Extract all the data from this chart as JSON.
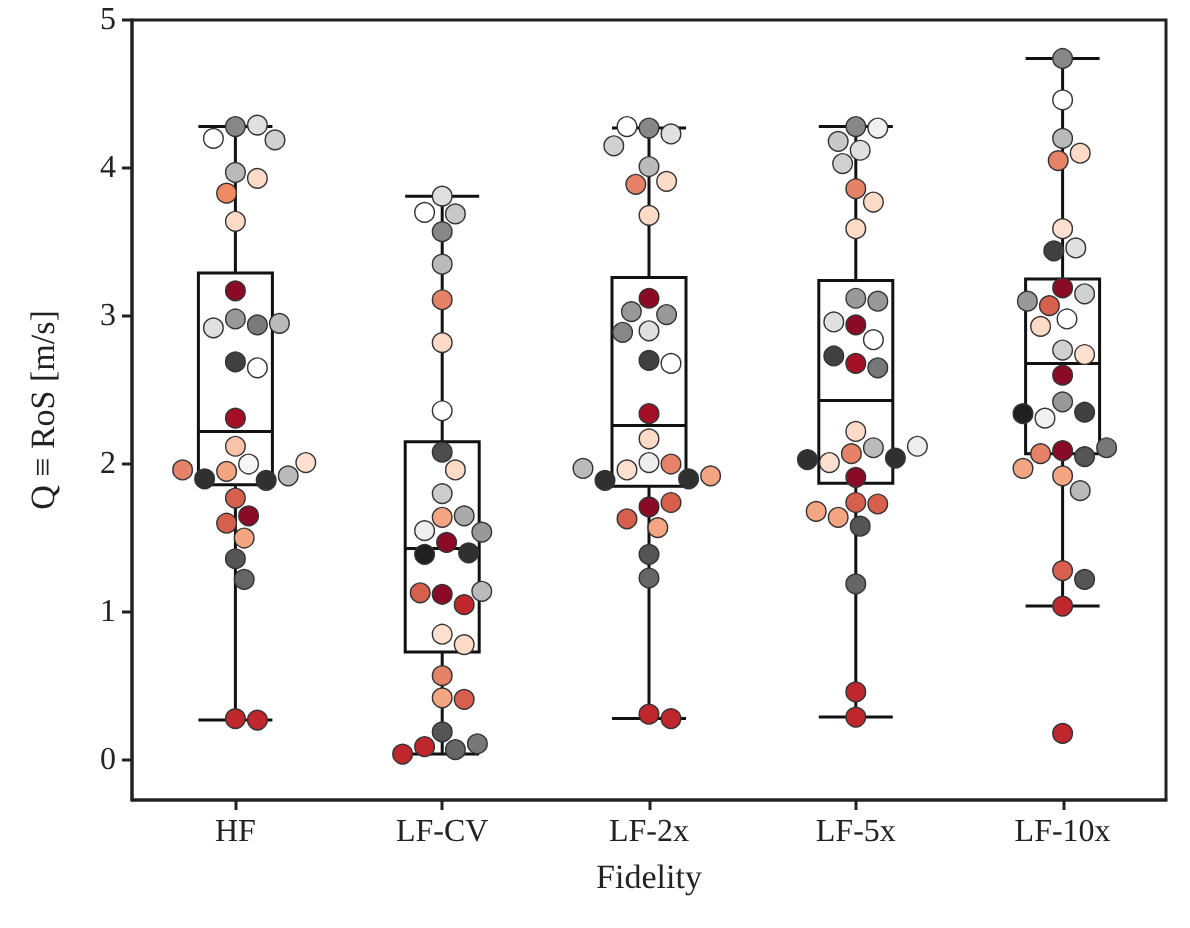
{
  "chart_data": {
    "type": "box",
    "xlabel": "Fidelity",
    "ylabel": "Q ≡ RoS [m/s]",
    "categories": [
      "HF",
      "LF-CV",
      "LF-2x",
      "LF-5x",
      "LF-10x"
    ],
    "ylim": [
      -0.27,
      5
    ],
    "yticks": [
      0,
      1,
      2,
      3,
      4,
      5
    ],
    "grid": false,
    "marker": "circle",
    "boxes": [
      {
        "low": 0.27,
        "q1": 1.86,
        "median": 2.22,
        "q3": 3.29,
        "high": 4.28
      },
      {
        "low": 0.04,
        "q1": 0.73,
        "median": 1.43,
        "q3": 2.15,
        "high": 3.81
      },
      {
        "low": 0.28,
        "q1": 1.85,
        "median": 2.26,
        "q3": 3.26,
        "high": 4.27
      },
      {
        "low": 0.29,
        "q1": 1.87,
        "median": 2.43,
        "q3": 3.24,
        "high": 4.28
      },
      {
        "low": 1.04,
        "q1": 2.07,
        "median": 2.68,
        "q3": 3.25,
        "high": 4.74
      }
    ],
    "series": [
      {
        "type": "scatter",
        "x": [
          "HF",
          "HF",
          "HF",
          "HF",
          "HF",
          "HF",
          "HF",
          "HF",
          "HF",
          "HF",
          "HF",
          "HF",
          "HF",
          "HF",
          "HF",
          "HF",
          "HF",
          "HF",
          "HF",
          "HF",
          "HF",
          "HF",
          "HF",
          "HF",
          "HF",
          "HF",
          "HF",
          "HF",
          "HF",
          "HF",
          "HF",
          "HF",
          "LF-CV",
          "LF-CV",
          "LF-CV",
          "LF-CV",
          "LF-CV",
          "LF-CV",
          "LF-CV",
          "LF-CV",
          "LF-CV",
          "LF-CV",
          "LF-CV",
          "LF-CV",
          "LF-CV",
          "LF-CV",
          "LF-CV",
          "LF-CV",
          "LF-CV",
          "LF-CV",
          "LF-CV",
          "LF-CV",
          "LF-CV",
          "LF-CV",
          "LF-CV",
          "LF-CV",
          "LF-CV",
          "LF-CV",
          "LF-CV",
          "LF-CV",
          "LF-CV",
          "LF-CV",
          "LF-CV",
          "LF-CV",
          "LF-2x",
          "LF-2x",
          "LF-2x",
          "LF-2x",
          "LF-2x",
          "LF-2x",
          "LF-2x",
          "LF-2x",
          "LF-2x",
          "LF-2x",
          "LF-2x",
          "LF-2x",
          "LF-2x",
          "LF-2x",
          "LF-2x",
          "LF-2x",
          "LF-2x",
          "LF-2x",
          "LF-2x",
          "LF-2x",
          "LF-2x",
          "LF-2x",
          "LF-2x",
          "LF-2x",
          "LF-2x",
          "LF-2x",
          "LF-2x",
          "LF-2x",
          "LF-2x",
          "LF-2x",
          "LF-2x",
          "LF-2x",
          "LF-5x",
          "LF-5x",
          "LF-5x",
          "LF-5x",
          "LF-5x",
          "LF-5x",
          "LF-5x",
          "LF-5x",
          "LF-5x",
          "LF-5x",
          "LF-5x",
          "LF-5x",
          "LF-5x",
          "LF-5x",
          "LF-5x",
          "LF-5x",
          "LF-5x",
          "LF-5x",
          "LF-5x",
          "LF-5x",
          "LF-5x",
          "LF-5x",
          "LF-5x",
          "LF-5x",
          "LF-5x",
          "LF-5x",
          "LF-5x",
          "LF-5x",
          "LF-5x",
          "LF-5x",
          "LF-5x",
          "LF-5x",
          "LF-10x",
          "LF-10x",
          "LF-10x",
          "LF-10x",
          "LF-10x",
          "LF-10x",
          "LF-10x",
          "LF-10x",
          "LF-10x",
          "LF-10x",
          "LF-10x",
          "LF-10x",
          "LF-10x",
          "LF-10x",
          "LF-10x",
          "LF-10x",
          "LF-10x",
          "LF-10x",
          "LF-10x",
          "LF-10x",
          "LF-10x",
          "LF-10x",
          "LF-10x",
          "LF-10x",
          "LF-10x",
          "LF-10x",
          "LF-10x",
          "LF-10x",
          "LF-10x",
          "LF-10x",
          "LF-10x",
          "LF-10x"
        ],
        "values": [
          4.28,
          4.29,
          4.2,
          4.19,
          3.97,
          3.93,
          3.83,
          3.64,
          3.17,
          2.98,
          2.94,
          2.92,
          2.95,
          2.69,
          2.65,
          2.31,
          2.12,
          2.0,
          1.95,
          1.89,
          1.9,
          1.92,
          1.96,
          2.01,
          1.77,
          1.65,
          1.6,
          1.5,
          1.36,
          1.22,
          0.28,
          0.27,
          3.81,
          3.69,
          3.7,
          3.57,
          3.35,
          3.11,
          2.82,
          2.36,
          2.08,
          1.96,
          1.8,
          1.64,
          1.65,
          1.55,
          1.54,
          1.47,
          1.39,
          1.4,
          1.12,
          1.05,
          1.13,
          1.14,
          0.85,
          0.78,
          0.57,
          0.42,
          0.41,
          0.19,
          0.07,
          0.09,
          0.11,
          0.04,
          4.27,
          4.23,
          4.28,
          4.15,
          4.01,
          3.91,
          3.89,
          3.68,
          3.12,
          3.01,
          3.03,
          2.9,
          2.89,
          2.7,
          2.68,
          2.34,
          2.17,
          2.01,
          2.0,
          1.96,
          1.9,
          1.89,
          1.92,
          1.97,
          1.71,
          1.74,
          1.63,
          1.57,
          1.39,
          1.23,
          0.31,
          0.28,
          4.28,
          4.27,
          4.18,
          4.12,
          4.03,
          3.86,
          3.77,
          3.59,
          3.12,
          3.1,
          2.94,
          2.96,
          2.84,
          2.68,
          2.65,
          2.73,
          2.22,
          2.11,
          2.07,
          2.01,
          2.04,
          2.03,
          2.12,
          1.91,
          1.74,
          1.73,
          1.64,
          1.68,
          1.58,
          1.19,
          0.46,
          0.29,
          4.74,
          4.46,
          4.2,
          4.1,
          4.05,
          3.59,
          3.46,
          3.44,
          3.19,
          3.15,
          3.07,
          3.1,
          2.98,
          2.93,
          2.77,
          2.74,
          2.6,
          2.42,
          2.35,
          2.31,
          2.34,
          2.09,
          2.05,
          2.07,
          2.11,
          1.92,
          1.97,
          1.82,
          1.28,
          1.22,
          1.04,
          0.18
        ],
        "colors": [
          "#878787",
          "#e0e0e0",
          "#ffffff",
          "#d0d0d0",
          "#bababa",
          "#fddbc7",
          "#ef8a62",
          "#fddbc7",
          "#8b0a26",
          "#999999",
          "#7a7a7a",
          "#e0e0e0",
          "#bababa",
          "#404040",
          "#ffffff",
          "#a50f26",
          "#f9c4a9",
          "#f7f7f7",
          "#f4a582",
          "#303030",
          "#303030",
          "#bababa",
          "#e58267",
          "#fde0d0",
          "#d6604d",
          "#8b0a26",
          "#d6604d",
          "#f4a582",
          "#555555",
          "#666666",
          "#c0272d",
          "#c0272d",
          "#e0e0e0",
          "#c8c8c8",
          "#ffffff",
          "#878787",
          "#bababa",
          "#e58267",
          "#fddbc7",
          "#ffffff",
          "#4d4d4d",
          "#fddbc7",
          "#cccccc",
          "#f4a582",
          "#aaaaaa",
          "#eeeeee",
          "#999999",
          "#8b0a26",
          "#202020",
          "#303030",
          "#8b0a26",
          "#c0272d",
          "#d6604d",
          "#bababa",
          "#fde0d0",
          "#fddbc7",
          "#e58267",
          "#f4a582",
          "#d6604d",
          "#555555",
          "#666666",
          "#c0272d",
          "#777777",
          "#c0272d",
          "#878787",
          "#e0e0e0",
          "#ffffff",
          "#d0d0d0",
          "#bababa",
          "#fddbc7",
          "#e58267",
          "#fddbc7",
          "#8b0a26",
          "#999999",
          "#999999",
          "#e0e0e0",
          "#878787",
          "#404040",
          "#ffffff",
          "#a50f26",
          "#fddbc7",
          "#eeeeee",
          "#e58267",
          "#fde0d0",
          "#303030",
          "#303030",
          "#f4a582",
          "#bababa",
          "#8b0a26",
          "#d6604d",
          "#d6604d",
          "#f4a582",
          "#555555",
          "#666666",
          "#c0272d",
          "#c0272d",
          "#878787",
          "#f0f0f0",
          "#c8c8c8",
          "#e0e0e0",
          "#d0d0d0",
          "#e58267",
          "#fddbc7",
          "#fddbc7",
          "#999999",
          "#999999",
          "#8b0a26",
          "#e0e0e0",
          "#ffffff",
          "#a50f26",
          "#777777",
          "#404040",
          "#fddbc7",
          "#bababa",
          "#e58267",
          "#fde0d0",
          "#303030",
          "#303030",
          "#eeeeee",
          "#8b0a26",
          "#d6604d",
          "#d6604d",
          "#f4a582",
          "#f4a582",
          "#555555",
          "#666666",
          "#c0272d",
          "#c0272d",
          "#878787",
          "#ffffff",
          "#bababa",
          "#fddbc7",
          "#e58267",
          "#fde0d0",
          "#e0e0e0",
          "#404040",
          "#8b0a26",
          "#d0d0d0",
          "#d6604d",
          "#999999",
          "#ffffff",
          "#fddbc7",
          "#d0d0d0",
          "#fde0d0",
          "#8b0a26",
          "#999999",
          "#404040",
          "#f0f0f0",
          "#202020",
          "#8b0a26",
          "#555555",
          "#e58267",
          "#777777",
          "#f4a582",
          "#f4a582",
          "#bababa",
          "#d6604d",
          "#555555",
          "#c0272d",
          "#c0272d"
        ]
      }
    ]
  }
}
